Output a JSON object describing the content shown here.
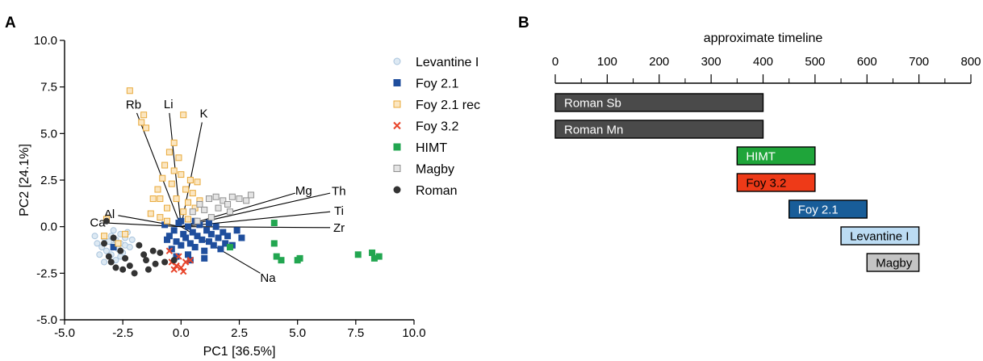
{
  "panels": {
    "A": "A",
    "B": "B"
  },
  "chart_data": [
    {
      "type": "scatter",
      "panel": "A",
      "xlabel": "PC1 [36.5%]",
      "ylabel": "PC2 [24.1%]",
      "xlim": [
        -5.0,
        10.0
      ],
      "ylim": [
        -5.0,
        10.0
      ],
      "xticks": [
        "-5.0",
        "-2.5",
        "0.0",
        "2.5",
        "5.0",
        "7.5",
        "10.0"
      ],
      "yticks": [
        "-5.0",
        "-2.5",
        "0.0",
        "2.5",
        "5.0",
        "7.5",
        "10.0"
      ],
      "grid": false,
      "legend_position": "right",
      "series": [
        {
          "name": "Levantine I",
          "marker": "circle-open",
          "color": "#a9c4dd",
          "fill": "#dde9f3",
          "points": [
            [
              -3.6,
              -0.9
            ],
            [
              -3.4,
              -1.1
            ],
            [
              -3.3,
              -0.6
            ],
            [
              -3.2,
              -1.3
            ],
            [
              -3.1,
              -0.8
            ],
            [
              -3.0,
              -0.5
            ],
            [
              -3.0,
              -1.5
            ],
            [
              -2.9,
              -1.0
            ],
            [
              -2.8,
              -0.7
            ],
            [
              -2.8,
              -1.8
            ],
            [
              -2.7,
              -1.2
            ],
            [
              -2.6,
              -0.4
            ],
            [
              -2.6,
              -0.9
            ],
            [
              -2.5,
              -1.4
            ],
            [
              -2.4,
              -0.6
            ],
            [
              -2.4,
              -1.0
            ],
            [
              -2.3,
              -0.3
            ],
            [
              -3.7,
              -0.5
            ],
            [
              -3.5,
              -1.5
            ],
            [
              -2.2,
              -1.1
            ],
            [
              -2.1,
              -0.7
            ],
            [
              -2.9,
              -0.2
            ],
            [
              -3.3,
              -1.9
            ],
            [
              -2.6,
              -1.6
            ]
          ]
        },
        {
          "name": "Foy 2.1",
          "marker": "square",
          "color": "#1f4e9d",
          "fill": "#1f4e9d",
          "points": [
            [
              -0.7,
              0.1
            ],
            [
              -0.5,
              -0.5
            ],
            [
              -0.4,
              -1.2
            ],
            [
              -0.3,
              -0.2
            ],
            [
              -0.2,
              -0.8
            ],
            [
              -0.1,
              0.2
            ],
            [
              0.0,
              -1.0
            ],
            [
              0.1,
              -0.4
            ],
            [
              0.2,
              -0.6
            ],
            [
              0.3,
              0.0
            ],
            [
              0.3,
              -1.5
            ],
            [
              0.4,
              -0.9
            ],
            [
              0.5,
              -0.3
            ],
            [
              0.6,
              -1.1
            ],
            [
              0.7,
              -0.5
            ],
            [
              0.8,
              0.1
            ],
            [
              0.9,
              -0.7
            ],
            [
              1.0,
              -1.3
            ],
            [
              1.1,
              -0.2
            ],
            [
              1.2,
              -0.8
            ],
            [
              1.3,
              -0.4
            ],
            [
              1.4,
              -1.0
            ],
            [
              1.5,
              0.0
            ],
            [
              1.6,
              -0.6
            ],
            [
              1.7,
              -1.2
            ],
            [
              1.8,
              -0.3
            ],
            [
              1.9,
              -0.9
            ],
            [
              2.0,
              -0.5
            ],
            [
              2.2,
              -1.0
            ],
            [
              2.4,
              -0.2
            ],
            [
              2.6,
              -0.6
            ],
            [
              -0.6,
              -0.7
            ],
            [
              0.0,
              0.3
            ],
            [
              0.6,
              0.3
            ],
            [
              1.2,
              0.2
            ],
            [
              -0.2,
              -1.6
            ],
            [
              0.4,
              -1.8
            ],
            [
              1.0,
              -1.7
            ],
            [
              -2.9,
              -1.1
            ]
          ]
        },
        {
          "name": "Foy 2.1 rec",
          "marker": "square-open",
          "color": "#e8a93a",
          "fill": "#fbe6c1",
          "points": [
            [
              -3.3,
              -0.5
            ],
            [
              -3.2,
              0.4
            ],
            [
              -2.7,
              -0.9
            ],
            [
              -2.4,
              -0.4
            ],
            [
              -2.2,
              7.3
            ],
            [
              -1.7,
              5.6
            ],
            [
              -1.6,
              6.0
            ],
            [
              -1.5,
              5.3
            ],
            [
              -1.3,
              0.7
            ],
            [
              -1.2,
              1.5
            ],
            [
              -1.0,
              2.0
            ],
            [
              -0.9,
              0.5
            ],
            [
              -0.8,
              2.6
            ],
            [
              -0.7,
              3.3
            ],
            [
              -0.6,
              1.0
            ],
            [
              -0.5,
              4.0
            ],
            [
              -0.4,
              2.3
            ],
            [
              -0.3,
              3.0
            ],
            [
              -0.2,
              1.5
            ],
            [
              -0.1,
              3.7
            ],
            [
              0.0,
              2.8
            ],
            [
              0.1,
              0.8
            ],
            [
              0.2,
              2.0
            ],
            [
              0.3,
              1.3
            ],
            [
              0.4,
              2.5
            ],
            [
              0.5,
              1.8
            ],
            [
              0.6,
              1.0
            ],
            [
              0.7,
              2.4
            ],
            [
              0.8,
              1.4
            ],
            [
              0.1,
              6.0
            ],
            [
              -0.3,
              4.5
            ],
            [
              -0.6,
              0.3
            ],
            [
              0.3,
              0.4
            ],
            [
              -0.9,
              1.5
            ]
          ]
        },
        {
          "name": "Foy 3.2",
          "marker": "x",
          "color": "#e8442a",
          "fill": "#e8442a",
          "points": [
            [
              -0.5,
              -1.3
            ],
            [
              -0.4,
              -1.9
            ],
            [
              -0.3,
              -2.3
            ],
            [
              -0.2,
              -2.1
            ],
            [
              0.0,
              -2.2
            ],
            [
              0.2,
              -1.9
            ],
            [
              0.4,
              -1.8
            ],
            [
              0.1,
              -2.4
            ],
            [
              -0.1,
              -1.6
            ]
          ]
        },
        {
          "name": "HIMT",
          "marker": "square",
          "color": "#22a650",
          "fill": "#22a650",
          "points": [
            [
              4.0,
              0.2
            ],
            [
              4.0,
              -0.9
            ],
            [
              4.1,
              -1.6
            ],
            [
              4.3,
              -1.8
            ],
            [
              5.0,
              -1.8
            ],
            [
              5.1,
              -1.7
            ],
            [
              2.1,
              -1.1
            ],
            [
              7.6,
              -1.5
            ],
            [
              8.2,
              -1.4
            ],
            [
              8.3,
              -1.7
            ],
            [
              8.5,
              -1.6
            ]
          ]
        },
        {
          "name": "Magby",
          "marker": "square-open",
          "color": "#909090",
          "fill": "#e4e4e4",
          "points": [
            [
              0.5,
              0.8
            ],
            [
              0.8,
              1.2
            ],
            [
              1.2,
              1.5
            ],
            [
              1.5,
              1.6
            ],
            [
              1.8,
              1.4
            ],
            [
              2.0,
              1.2
            ],
            [
              2.2,
              1.6
            ],
            [
              2.5,
              1.5
            ],
            [
              2.8,
              1.4
            ],
            [
              3.0,
              1.7
            ],
            [
              1.0,
              0.9
            ],
            [
              1.3,
              0.5
            ],
            [
              0.7,
              0.3
            ],
            [
              2.1,
              0.8
            ],
            [
              1.6,
              1.0
            ]
          ]
        },
        {
          "name": "Roman",
          "marker": "circle",
          "color": "#333333",
          "fill": "#333333",
          "points": [
            [
              -3.3,
              -0.9
            ],
            [
              -3.1,
              -1.6
            ],
            [
              -3.0,
              -1.9
            ],
            [
              -2.8,
              -2.2
            ],
            [
              -2.6,
              -1.3
            ],
            [
              -2.5,
              -2.3
            ],
            [
              -2.4,
              -1.7
            ],
            [
              -2.2,
              -2.1
            ],
            [
              -2.0,
              -2.5
            ],
            [
              -1.8,
              -1.0
            ],
            [
              -1.6,
              -1.5
            ],
            [
              -1.4,
              -2.3
            ],
            [
              -1.2,
              -1.3
            ],
            [
              -1.1,
              -2.0
            ],
            [
              -0.9,
              -1.4
            ],
            [
              -0.7,
              -1.9
            ],
            [
              -3.2,
              0.3
            ],
            [
              -2.9,
              -0.6
            ],
            [
              -1.5,
              -1.8
            ],
            [
              -0.3,
              -1.8
            ]
          ]
        }
      ],
      "loadings": [
        {
          "label": "Rb",
          "x": -1.9,
          "y": 6.1
        },
        {
          "label": "Li",
          "x": -0.5,
          "y": 6.1
        },
        {
          "label": "K",
          "x": 0.9,
          "y": 5.6
        },
        {
          "label": "Mg",
          "x": 4.9,
          "y": 1.8
        },
        {
          "label": "Th",
          "x": 6.4,
          "y": 1.8
        },
        {
          "label": "Ti",
          "x": 6.4,
          "y": 0.8
        },
        {
          "label": "Zr",
          "x": 6.4,
          "y": -0.05
        },
        {
          "label": "Na",
          "x": 3.4,
          "y": -2.5
        },
        {
          "label": "Al",
          "x": -2.7,
          "y": 0.6
        },
        {
          "label": "Ca",
          "x": -3.2,
          "y": 0.2
        }
      ]
    },
    {
      "type": "bar",
      "orientation": "horizontal",
      "panel": "B",
      "title": "approximate timeline",
      "xlim": [
        0,
        800
      ],
      "xticks": [
        "0",
        "100",
        "200",
        "300",
        "400",
        "500",
        "600",
        "700",
        "800"
      ],
      "categories": [
        "Roman Sb",
        "Roman Mn",
        "HIMT",
        "Foy 3.2",
        "Foy 2.1",
        "Levantine I",
        "Magby"
      ],
      "ranges": [
        [
          0,
          400
        ],
        [
          0,
          400
        ],
        [
          350,
          500
        ],
        [
          350,
          500
        ],
        [
          450,
          600
        ],
        [
          550,
          700
        ],
        [
          600,
          700
        ]
      ],
      "colors": [
        "#4a4a4a",
        "#4a4a4a",
        "#1fa53a",
        "#ee3a18",
        "#185d99",
        "#bcdcf3",
        "#c4c4c4"
      ],
      "label_colors": [
        "#ffffff",
        "#ffffff",
        "#ffffff",
        "#000000",
        "#ffffff",
        "#000000",
        "#000000"
      ]
    }
  ]
}
